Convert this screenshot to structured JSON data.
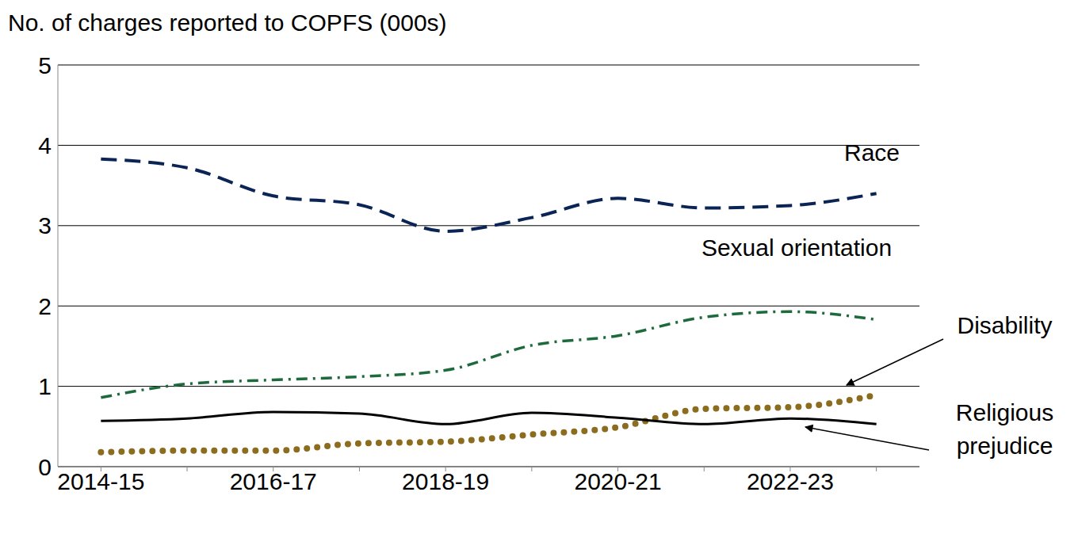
{
  "chart_data": {
    "type": "line",
    "y_label": "No. of charges reported to COPFS (000s)",
    "categories": [
      "2014-15",
      null,
      "2016-17",
      null,
      "2018-19",
      null,
      "2020-21",
      null,
      "2022-23",
      null
    ],
    "series": [
      {
        "name": "Race",
        "color": "#0b2456",
        "line_style": "dashed",
        "values": [
          3.83,
          3.72,
          3.37,
          3.26,
          2.93,
          3.1,
          3.34,
          3.22,
          3.25,
          3.4
        ]
      },
      {
        "name": "Sexual orientation",
        "color": "#1d6b3c",
        "line_style": "dashdot",
        "values": [
          0.86,
          1.03,
          1.08,
          1.12,
          1.2,
          1.51,
          1.63,
          1.86,
          1.93,
          1.83
        ]
      },
      {
        "name": "Disability",
        "color": "#8c6d1f",
        "line_style": "dotted",
        "values": [
          0.18,
          0.2,
          0.2,
          0.29,
          0.31,
          0.4,
          0.49,
          0.72,
          0.74,
          0.89
        ]
      },
      {
        "name": "Religious prejudice",
        "color": "#000000",
        "line_style": "solid",
        "values": [
          0.57,
          0.6,
          0.68,
          0.66,
          0.53,
          0.67,
          0.61,
          0.53,
          0.6,
          0.53
        ]
      }
    ],
    "ylim": [
      0,
      5
    ],
    "yticks": [
      0,
      1,
      2,
      3,
      4,
      5
    ],
    "grid": true
  }
}
